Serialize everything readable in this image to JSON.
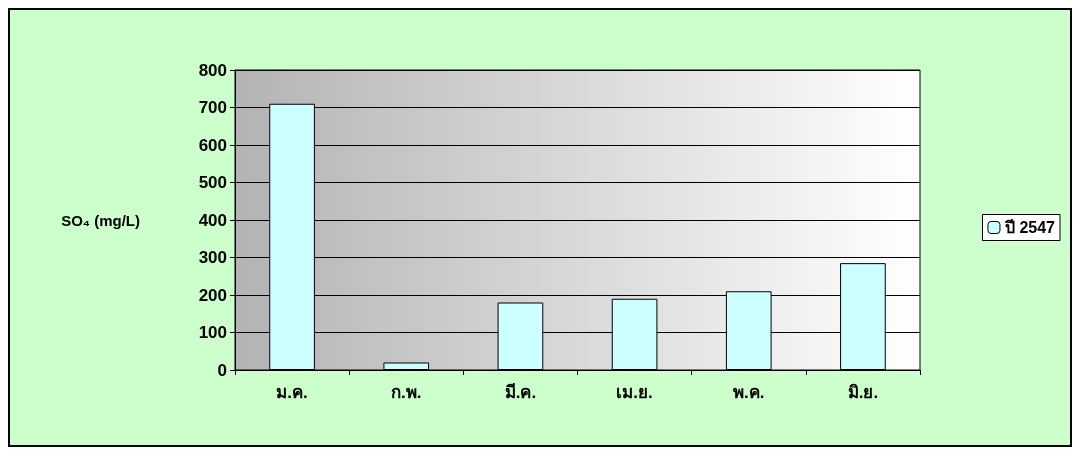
{
  "chart_data": {
    "type": "bar",
    "ylabel": "SO₄ (mg/L)",
    "categories": [
      "ม.ค.",
      "ก.พ.",
      "มี.ค.",
      "เม.ย.",
      "พ.ค.",
      "มิ.ย."
    ],
    "series": [
      {
        "name": "ปี 2547",
        "color": "#ccffff",
        "values": [
          710,
          20,
          180,
          190,
          210,
          285
        ]
      }
    ],
    "ylim": [
      0,
      800
    ],
    "yticks": [
      0,
      100,
      200,
      300,
      400,
      500,
      600,
      700,
      800
    ],
    "grid": "y",
    "legend": "right"
  }
}
